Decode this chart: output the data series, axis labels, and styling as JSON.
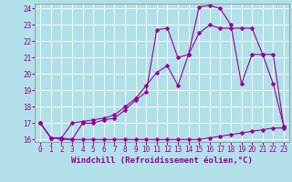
{
  "xlabel": "Windchill (Refroidissement éolien,°C)",
  "background_color": "#b2e0e8",
  "grid_color": "#ffffff",
  "line_color": "#990099",
  "x_min": 0,
  "x_max": 23,
  "y_min": 16,
  "y_max": 24,
  "line1_y": [
    17.0,
    16.1,
    16.1,
    16.0,
    16.0,
    16.0,
    16.0,
    16.0,
    16.0,
    16.0,
    16.0,
    16.0,
    16.0,
    16.0,
    16.0,
    16.0,
    16.1,
    16.2,
    16.3,
    16.4,
    16.5,
    16.6,
    16.7,
    16.7
  ],
  "line2_y": [
    17.0,
    16.1,
    16.1,
    17.0,
    17.1,
    17.2,
    17.3,
    17.5,
    18.0,
    18.5,
    19.3,
    20.1,
    20.5,
    19.3,
    21.2,
    22.5,
    23.0,
    22.8,
    22.8,
    22.8,
    22.8,
    21.2,
    21.2,
    16.8
  ],
  "line3_y": [
    17.0,
    16.1,
    16.0,
    16.0,
    17.0,
    17.0,
    17.2,
    17.3,
    17.8,
    18.4,
    18.9,
    22.7,
    22.8,
    21.0,
    21.2,
    24.1,
    24.2,
    24.0,
    23.0,
    19.4,
    21.2,
    21.2,
    19.4,
    16.8
  ],
  "marker": "D",
  "markersize": 2.5,
  "linewidth": 0.8,
  "tick_fontsize": 5.5,
  "label_fontsize": 6.5
}
